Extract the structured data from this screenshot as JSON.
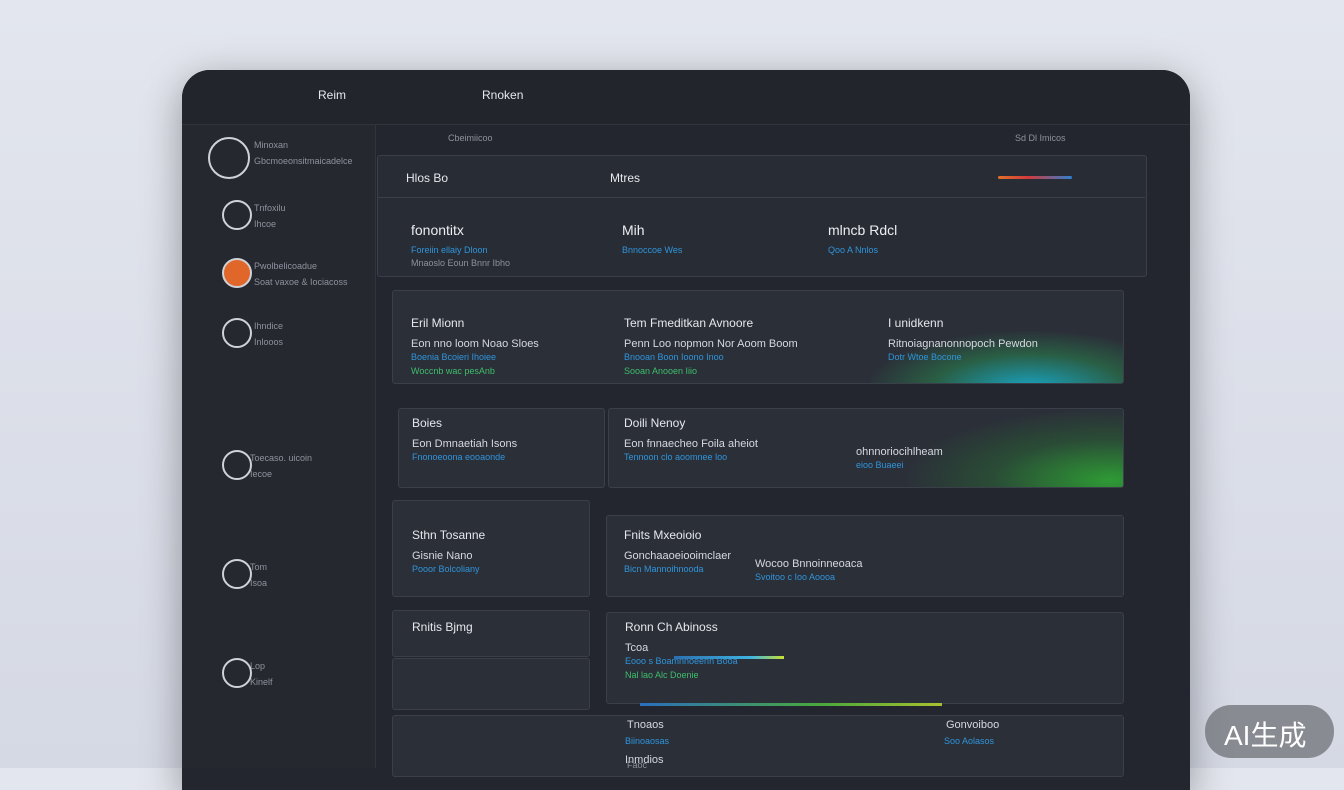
{
  "topbar": {
    "nav": [
      "Reim",
      "Rnoken"
    ]
  },
  "sidebar": {
    "items": [
      {
        "title": "Minoxan",
        "sub": "Gbcmoeonsitmaicadelce"
      },
      {
        "title": "Tnfoxilu",
        "sub": "Ihcoe"
      },
      {
        "title": "Pwolbelicoadue",
        "sub": "Soat vaxoe & Iociacoss"
      },
      {
        "title": "Ihndice",
        "sub": "Inlooos"
      },
      {
        "title": "Toecaso. uicoin",
        "sub": "Iecoe"
      },
      {
        "title": "Tom",
        "sub": "Isoa"
      },
      {
        "title": "Lop",
        "sub": "Kinelf"
      }
    ]
  },
  "breadcrumb": {
    "left": "Cbeimiicoo",
    "right": "Sd  Dl  Imicos"
  },
  "panel": {
    "tabs": [
      "Hlos Bo",
      "Mtres"
    ],
    "stats": [
      {
        "title": "fonontitx",
        "lines": [
          "Foreiin ellaiy Dloon",
          "Mnaoslo Eoun Bnnr Ibho"
        ]
      },
      {
        "title": "Mih",
        "lines": [
          "Bnnoccoe  Wes"
        ]
      },
      {
        "title": "mlncb Rdcl",
        "lines": [
          "Qoo  A  Nnlos"
        ]
      }
    ]
  },
  "rows": [
    {
      "cols": [
        {
          "title": "Eril Mionn",
          "lines": [
            "Eon nno loom Noao Sloes",
            "Boenia Bcoieri Ihoiee",
            "Woccnb wac pesAnb"
          ]
        },
        {
          "title": "Tem Fmeditkan Avnoore",
          "lines": [
            "Penn Loo nopmon Nor Aoom Boom",
            "Bnooan Boon Ioono Inoo",
            "Sooan Anooen Iiio"
          ]
        },
        {
          "title": "I unidkenn",
          "lines": [
            "Ritnoiagnanonnopoch Pewdon",
            "Dotr Wtoe Bocone"
          ]
        }
      ]
    },
    {
      "cols": [
        {
          "title": "Boies",
          "lines": [
            "Eon Dmnaetiah Isons",
            "Fnonoeoona eooaonde"
          ]
        },
        {
          "title": "Doili Nenoy",
          "lines": [
            "Eon fnnaecheo Foila aheiot",
            "Tennoon clo aoomnee loo"
          ]
        },
        {
          "title": "",
          "lines": [
            "ohnnoriocihlheam",
            "eioo Buaeei"
          ]
        }
      ]
    },
    {
      "cols": [
        {
          "title": "Sthn Tosanne",
          "lines": [
            "Gisnie Nano",
            "Pooor Bolcoliany"
          ]
        },
        {
          "title": "Fnits Mxeoioio",
          "lines": [
            "Gonchaaoeiooimclaer",
            "Bicn Mannoihnooda"
          ]
        },
        {
          "title": "",
          "lines": [
            "Wocoo  Bnnoinneoaca",
            "Svoitoo c Ioo Aoooa"
          ]
        }
      ]
    },
    {
      "cols": [
        {
          "title": "Rnitis Bjmg",
          "lines": []
        },
        {
          "title": "Ronn Ch Abinoss",
          "lines": [
            "Tcoa",
            "Eooo s  Boamnnoeenn Booa",
            "Nal lao Alc Doenie"
          ]
        },
        {
          "title": "",
          "lines": []
        }
      ]
    }
  ],
  "footer": {
    "items": [
      "Tnoaos",
      "Biinoaosas",
      "Inmdios",
      "Gonvoiboo",
      "Soo  Aolasos",
      "Faoc"
    ]
  },
  "watermark": "AI生成"
}
